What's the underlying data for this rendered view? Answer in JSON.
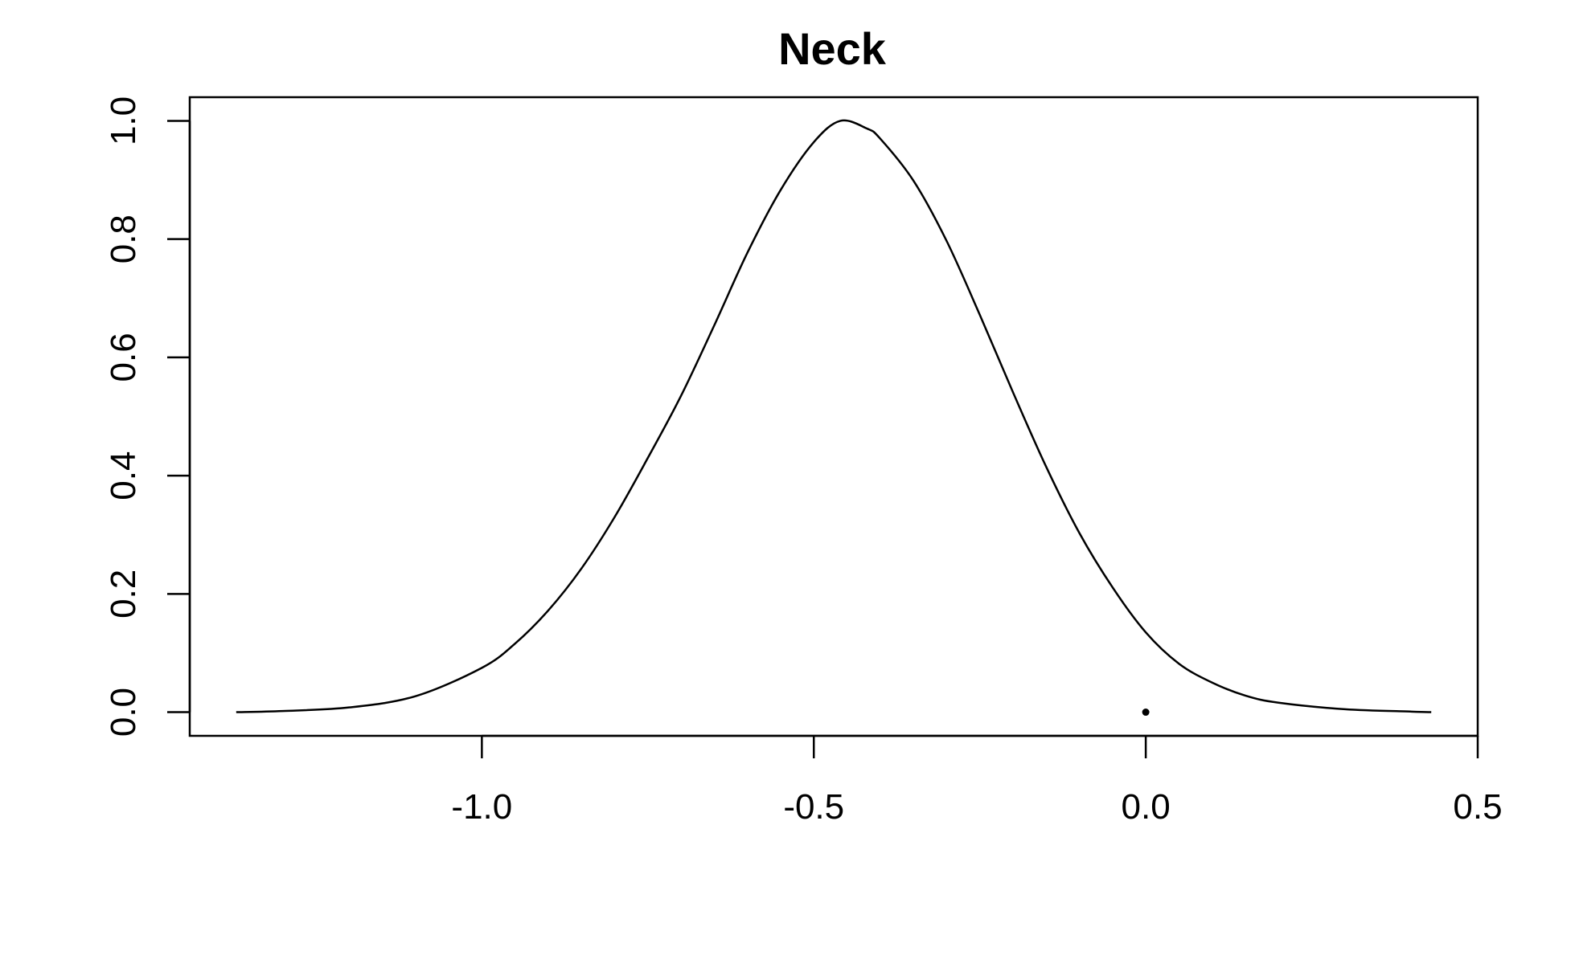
{
  "chart_data": {
    "type": "line",
    "title": "Neck",
    "xlabel": "",
    "ylabel": "",
    "xlim": [
      -1.44,
      0.5
    ],
    "ylim": [
      -0.04,
      1.04
    ],
    "x_ticks": [
      "-1.0",
      "-0.5",
      "0.0",
      "0.5"
    ],
    "y_ticks": [
      "0.0",
      "0.2",
      "0.4",
      "0.6",
      "0.8",
      "1.0"
    ],
    "grid": false,
    "series": [
      {
        "x": [
          -1.37,
          -1.3,
          -1.2,
          -1.1,
          -1.0,
          -0.95,
          -0.9,
          -0.85,
          -0.8,
          -0.75,
          -0.7,
          -0.65,
          -0.6,
          -0.55,
          -0.5,
          -0.46,
          -0.42,
          -0.4,
          -0.35,
          -0.3,
          -0.25,
          -0.2,
          -0.15,
          -0.1,
          -0.05,
          0.0,
          0.05,
          0.1,
          0.15,
          0.2,
          0.3,
          0.4,
          0.43
        ],
        "y": [
          0.0,
          0.002,
          0.008,
          0.027,
          0.075,
          0.116,
          0.172,
          0.243,
          0.33,
          0.43,
          0.535,
          0.654,
          0.777,
          0.883,
          0.964,
          1.0,
          0.987,
          0.97,
          0.899,
          0.797,
          0.672,
          0.541,
          0.415,
          0.303,
          0.211,
          0.135,
          0.082,
          0.05,
          0.028,
          0.016,
          0.005,
          0.001,
          0.0
        ]
      }
    ],
    "points": [
      {
        "x": 0.0,
        "y": 0.0
      }
    ]
  }
}
